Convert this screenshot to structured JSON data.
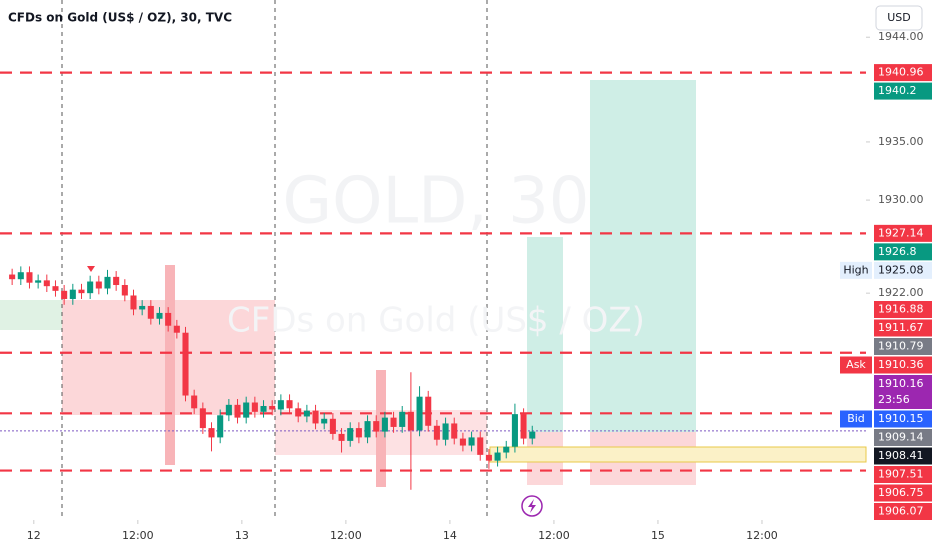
{
  "chart_data": {
    "type": "candlestick",
    "title": "CFDs on Gold (US$ / OZ), 30, TVC",
    "currency": "USD",
    "watermark": "GOLD, 30",
    "watermark_sub": "CFDs on Gold (US$ / OZ)",
    "up_color": "#089981",
    "down_color": "#f23645",
    "x": [
      -3,
      -2,
      -1,
      0,
      1,
      2,
      3,
      4,
      5,
      6,
      7,
      8,
      9,
      10,
      11,
      12,
      13,
      14,
      15,
      16,
      17,
      18,
      19,
      20,
      21,
      22,
      23,
      24,
      25,
      26,
      27,
      28,
      29,
      30,
      31,
      32,
      33,
      34,
      35,
      36,
      37,
      38,
      39,
      40,
      41,
      42,
      43,
      44,
      45,
      46,
      47,
      48,
      49,
      50,
      51,
      52,
      53,
      54,
      55,
      56,
      57
    ],
    "open": [
      1923.6,
      1923.2,
      1923.8,
      1922.9,
      1923.1,
      1922.6,
      1922.2,
      1921.5,
      1922.3,
      1922.0,
      1923.0,
      1922.4,
      1923.4,
      1922.7,
      1921.8,
      1920.6,
      1920.9,
      1919.8,
      1920.3,
      1919.2,
      1918.6,
      1913.2,
      1912.1,
      1910.4,
      1909.6,
      1911.5,
      1912.4,
      1911.3,
      1912.6,
      1911.8,
      1912.3,
      1912.0,
      1912.8,
      1912.1,
      1911.4,
      1911.9,
      1910.8,
      1911.2,
      1909.9,
      1909.3,
      1910.4,
      1909.6,
      1911.0,
      1910.1,
      1911.3,
      1910.5,
      1911.8,
      1910.2,
      1913.1,
      1910.6,
      1909.4,
      1910.8,
      1909.5,
      1908.9,
      1909.6,
      1908.1,
      1907.6,
      1908.3,
      1908.8,
      1911.6,
      1909.5
    ],
    "high": [
      1924.1,
      1924.3,
      1924.3,
      1923.6,
      1923.6,
      1923.1,
      1922.7,
      1922.8,
      1922.8,
      1923.5,
      1923.5,
      1924.0,
      1923.9,
      1923.2,
      1922.3,
      1921.4,
      1921.4,
      1920.8,
      1920.8,
      1919.7,
      1919.1,
      1913.7,
      1912.6,
      1910.9,
      1912.0,
      1912.9,
      1912.9,
      1913.1,
      1913.1,
      1912.8,
      1912.8,
      1913.3,
      1913.3,
      1912.6,
      1912.4,
      1912.4,
      1911.7,
      1911.7,
      1910.4,
      1910.9,
      1910.9,
      1911.5,
      1911.5,
      1911.8,
      1911.8,
      1912.3,
      1915.2,
      1914.0,
      1913.6,
      1911.1,
      1911.3,
      1911.3,
      1910.0,
      1910.1,
      1910.1,
      1908.6,
      1908.8,
      1909.3,
      1912.5,
      1912.1,
      1910.6
    ],
    "low": [
      1922.7,
      1922.7,
      1922.4,
      1922.4,
      1922.1,
      1921.7,
      1921.0,
      1921.0,
      1921.5,
      1921.5,
      1921.9,
      1921.9,
      1922.2,
      1921.3,
      1920.1,
      1920.1,
      1919.3,
      1919.3,
      1918.7,
      1918.1,
      1912.7,
      1911.6,
      1909.9,
      1908.4,
      1909.1,
      1911.0,
      1910.8,
      1910.8,
      1911.3,
      1911.3,
      1911.5,
      1911.5,
      1911.6,
      1910.9,
      1910.9,
      1910.3,
      1910.3,
      1909.4,
      1908.3,
      1908.8,
      1909.1,
      1909.1,
      1909.6,
      1909.6,
      1910.0,
      1910.0,
      1905.1,
      1909.7,
      1910.1,
      1908.9,
      1908.9,
      1909.0,
      1908.4,
      1908.4,
      1907.6,
      1906.9,
      1907.1,
      1907.8,
      1908.3,
      1909.0,
      1909.0
    ],
    "close": [
      1923.2,
      1923.8,
      1922.9,
      1923.1,
      1922.6,
      1922.2,
      1921.5,
      1922.3,
      1922.0,
      1923.0,
      1922.4,
      1923.4,
      1922.7,
      1921.8,
      1920.6,
      1920.9,
      1919.8,
      1920.3,
      1919.2,
      1918.6,
      1913.2,
      1912.1,
      1910.4,
      1909.6,
      1911.5,
      1912.4,
      1911.3,
      1912.6,
      1911.8,
      1912.3,
      1912.0,
      1912.8,
      1912.1,
      1911.4,
      1911.9,
      1910.8,
      1911.2,
      1909.9,
      1909.3,
      1910.4,
      1909.6,
      1911.0,
      1910.1,
      1911.3,
      1910.5,
      1911.8,
      1910.2,
      1913.1,
      1910.6,
      1909.4,
      1910.8,
      1909.5,
      1908.9,
      1909.6,
      1908.1,
      1907.6,
      1908.3,
      1908.8,
      1911.6,
      1909.5,
      1910.1
    ],
    "xlim": [
      -3.9,
      96
    ],
    "xticks": [
      {
        "value": 0,
        "label": "12"
      },
      {
        "value": 12,
        "label": "12:00"
      },
      {
        "value": 24,
        "label": "13"
      },
      {
        "value": 36,
        "label": "12:00"
      },
      {
        "value": 48,
        "label": "14"
      },
      {
        "value": 60,
        "label": "12:00"
      },
      {
        "value": 72,
        "label": "15"
      },
      {
        "value": 84,
        "label": "12:00"
      }
    ],
    "ylim": [
      1902.5,
      1947.2
    ],
    "yticks": [
      {
        "value": 1944,
        "label": "1944.00"
      },
      {
        "value": 1935,
        "label": "1935.00"
      },
      {
        "value": 1930,
        "label": "1930.00"
      },
      {
        "value": 1922,
        "label": "1922.00"
      }
    ],
    "levels": [
      1940.96,
      1927.14,
      1916.88,
      1911.67,
      1906.75
    ],
    "level_color": "#f23645",
    "price_labels": [
      {
        "value": 1940.96,
        "color": "#f23645"
      },
      {
        "value": 1940.2,
        "color": "#089981"
      },
      {
        "value": 1927.14,
        "color": "#f23645"
      },
      {
        "value": 1926.8,
        "color": "#089981"
      },
      {
        "value": 1925.08,
        "color": "#e3effd",
        "tag": "High"
      },
      {
        "value": 1916.88,
        "color": "#f23645"
      },
      {
        "value": 1911.67,
        "color": "#f23645"
      },
      {
        "value": 1910.79,
        "color": "#787b86"
      },
      {
        "value": 1910.36,
        "color": "#f23645",
        "tag": "Ask"
      },
      {
        "value": 1910.16,
        "color": "#9c27b0",
        "countdown": "23:56"
      },
      {
        "value": 1910.15,
        "color": "#2962ff",
        "tag": "Bid"
      },
      {
        "value": 1909.14,
        "color": "#787b86"
      },
      {
        "value": 1908.41,
        "color": "#131722"
      },
      {
        "value": 1907.51,
        "color": "#f23645"
      },
      {
        "value": 1906.75,
        "color": "#f23645"
      },
      {
        "value": 1906.07,
        "color": "#f23645"
      }
    ]
  }
}
